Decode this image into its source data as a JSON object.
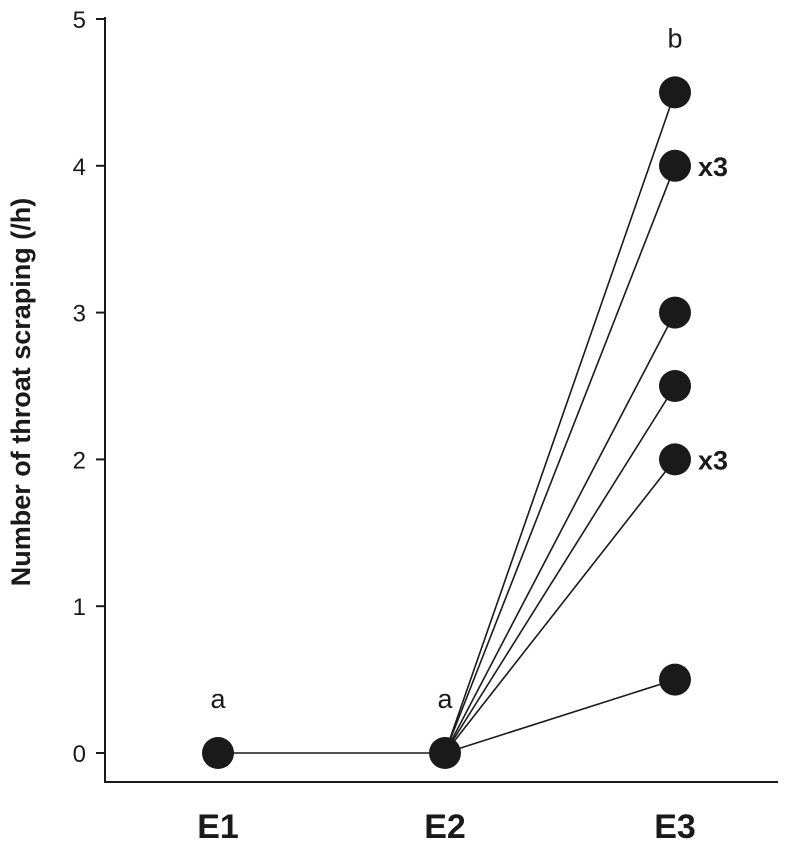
{
  "chart_data": {
    "type": "scatter",
    "ylabel": "Number of throat scraping (/h)",
    "categories": [
      "E1",
      "E2",
      "E3"
    ],
    "ylim": [
      0,
      5
    ],
    "yticks": [
      "0",
      "1",
      "2",
      "3",
      "4",
      "5"
    ],
    "grid": false,
    "point_color": "#1a1a1a",
    "points": [
      {
        "category": "E1",
        "value": 0
      },
      {
        "category": "E2",
        "value": 0
      },
      {
        "category": "E3",
        "value": 4.5
      },
      {
        "category": "E3",
        "value": 4.0,
        "multiplier": "x3"
      },
      {
        "category": "E3",
        "value": 3.0
      },
      {
        "category": "E3",
        "value": 2.5
      },
      {
        "category": "E3",
        "value": 2.0,
        "multiplier": "x3"
      },
      {
        "category": "E3",
        "value": 0.5
      }
    ],
    "connections": [
      {
        "from": [
          "E1",
          0
        ],
        "to": [
          "E2",
          0
        ]
      },
      {
        "from": [
          "E2",
          0
        ],
        "to": [
          "E3",
          4.5
        ]
      },
      {
        "from": [
          "E2",
          0
        ],
        "to": [
          "E3",
          4.0
        ]
      },
      {
        "from": [
          "E2",
          0
        ],
        "to": [
          "E3",
          3.0
        ]
      },
      {
        "from": [
          "E2",
          0
        ],
        "to": [
          "E3",
          2.5
        ]
      },
      {
        "from": [
          "E2",
          0
        ],
        "to": [
          "E3",
          2.0
        ]
      },
      {
        "from": [
          "E2",
          0
        ],
        "to": [
          "E3",
          0.5
        ]
      }
    ],
    "significance": [
      {
        "category": "E1",
        "label": "a"
      },
      {
        "category": "E2",
        "label": "a"
      },
      {
        "category": "E3",
        "label": "b"
      }
    ]
  }
}
